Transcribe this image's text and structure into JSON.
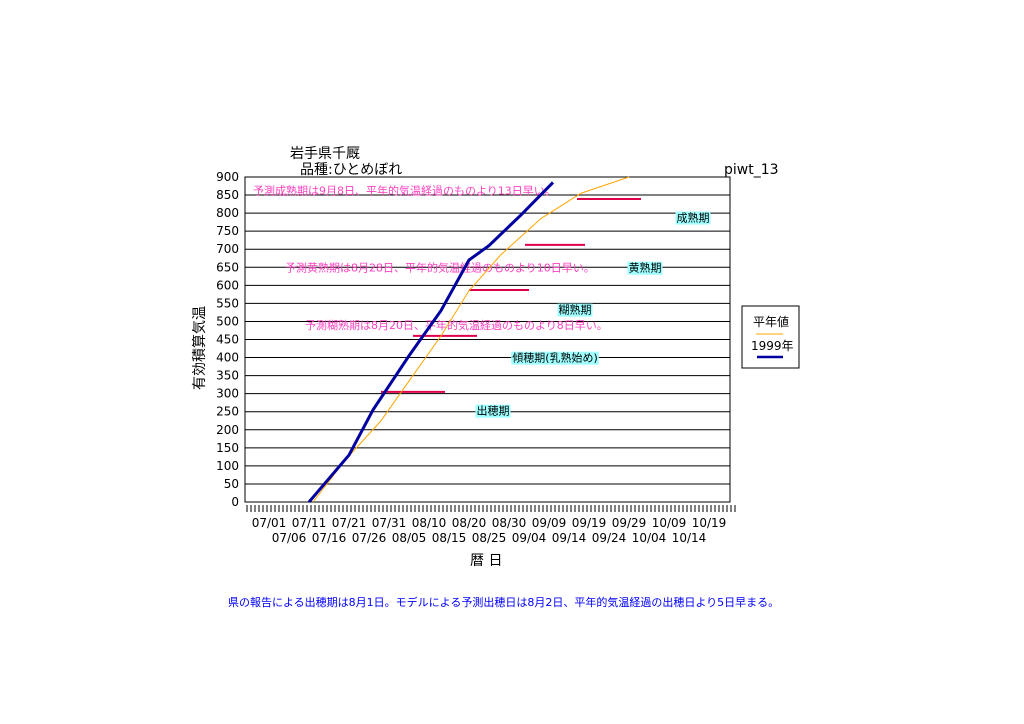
{
  "chart_data": {
    "type": "line",
    "title": "岩手県千厩",
    "subtitle": "品種:ひとめぼれ",
    "code_label": "piwt_13",
    "xlabel": "暦 日",
    "ylabel": "有効積算気温",
    "ylim": [
      0,
      900
    ],
    "yticks": [
      0,
      50,
      100,
      150,
      200,
      250,
      300,
      350,
      400,
      450,
      500,
      550,
      600,
      650,
      700,
      750,
      800,
      850,
      900
    ],
    "xlim": [
      "06/25",
      "10/25"
    ],
    "xtick_labels_row1": [
      "07/01",
      "07/11",
      "07/21",
      "07/31",
      "08/10",
      "08/20",
      "08/30",
      "09/09",
      "09/19",
      "09/29",
      "10/09",
      "10/19"
    ],
    "xtick_labels_row2": [
      "07/06",
      "07/16",
      "07/26",
      "08/05",
      "08/15",
      "08/25",
      "09/04",
      "09/14",
      "09/24",
      "10/04",
      "10/14"
    ],
    "grid": "horizontal",
    "legend_placement": "right",
    "series": [
      {
        "name": "平年値",
        "color": "#ffa500",
        "points": [
          [
            "07/12",
            0
          ],
          [
            "07/20",
            115
          ],
          [
            "07/29",
            225
          ],
          [
            "08/05",
            335
          ],
          [
            "08/13",
            460
          ],
          [
            "08/20",
            585
          ],
          [
            "08/28",
            685
          ],
          [
            "09/07",
            785
          ],
          [
            "09/17",
            855
          ],
          [
            "09/29",
            900
          ]
        ]
      },
      {
        "name": "1999年",
        "color": "#0000a0",
        "points": [
          [
            "07/11",
            0
          ],
          [
            "07/21",
            130
          ],
          [
            "07/27",
            255
          ],
          [
            "08/05",
            405
          ],
          [
            "08/13",
            530
          ],
          [
            "08/20",
            670
          ],
          [
            "08/25",
            710
          ],
          [
            "09/02",
            795
          ],
          [
            "09/10",
            885
          ]
        ]
      }
    ],
    "stage_bars": {
      "color": "#e0004a",
      "items": [
        {
          "value": 305,
          "from": "07/29",
          "to": "08/14"
        },
        {
          "value": 460,
          "from": "08/06",
          "to": "08/22"
        },
        {
          "value": 587,
          "from": "08/20",
          "to": "09/04"
        },
        {
          "value": 712,
          "from": "09/03",
          "to": "09/18"
        },
        {
          "value": 839,
          "from": "09/16",
          "to": "10/02"
        }
      ]
    },
    "stage_labels": [
      {
        "text": "出穂期",
        "date": "08/16",
        "value": 250
      },
      {
        "text": "傾穂期(乳熟始め)",
        "date": "08/11",
        "value": 397
      },
      {
        "text": "糊熟期",
        "date": "09/01",
        "value": 530
      },
      {
        "text": "黄熟期",
        "date": "09/17",
        "value": 646
      },
      {
        "text": "成熟期",
        "date": "09/30",
        "value": 785
      }
    ],
    "annotations": [
      {
        "text": "予測成熟期は9月8日、平年的気温経過のものより13日早い。",
        "date": "06/27",
        "value": 862
      },
      {
        "text": "予測黄熟期は8月28日、平年的気温経過のものより10日早い。",
        "date": "07/05",
        "value": 650
      },
      {
        "text": "予測糊熟期は8月20日、平年的気温経過のものより8日早い。",
        "date": "07/10",
        "value": 490
      }
    ],
    "annotation_color": "#ff40c0",
    "stage_label_bg": "#a0ffff"
  },
  "footer": "県の報告による出穂期は8月1日。モデルによる予測出穂日は8月2日、平年的気温経過の出穂日より5日早まる。",
  "footer_color": "#0000ff"
}
